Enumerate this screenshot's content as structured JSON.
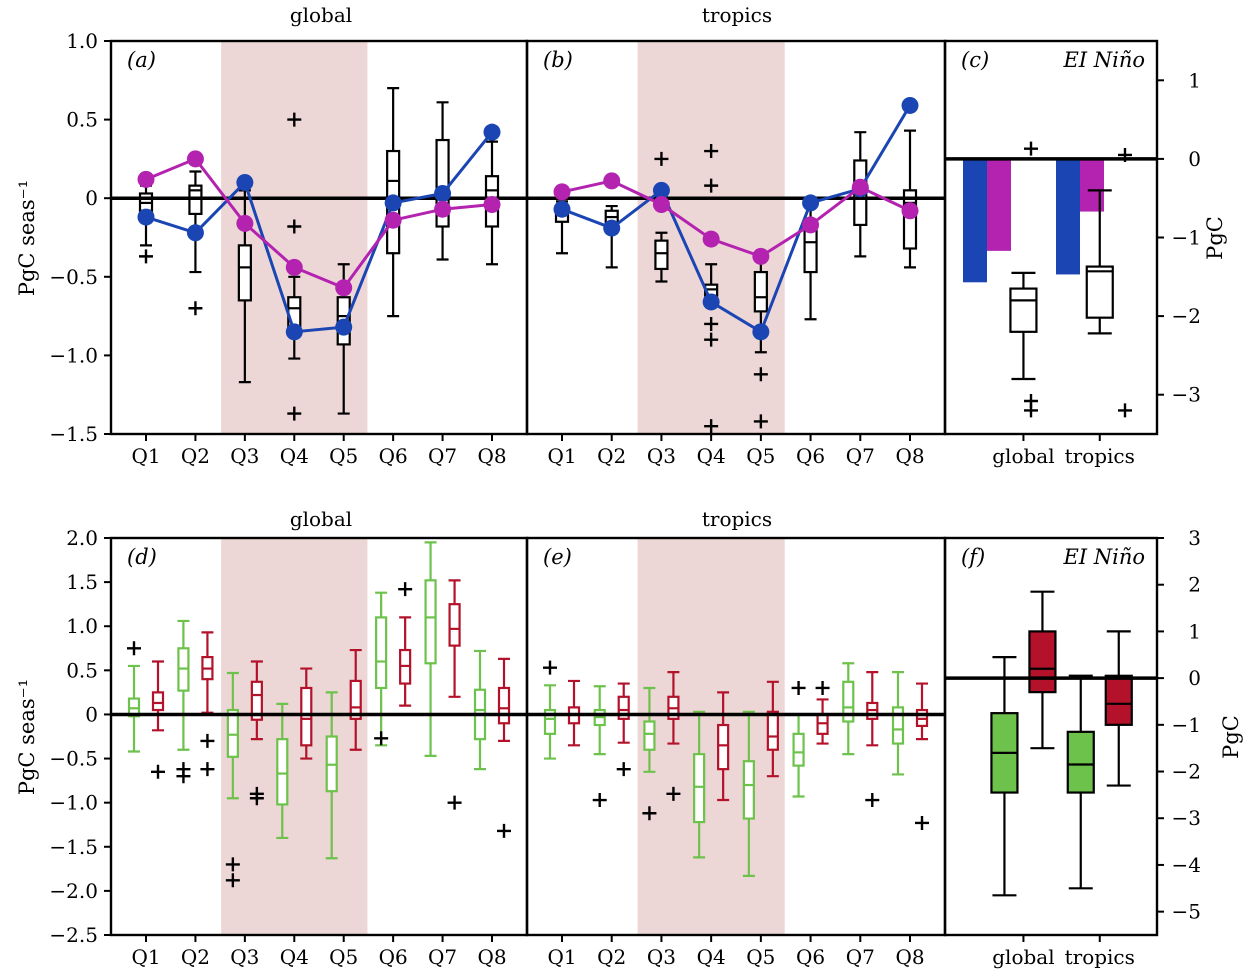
{
  "colors": {
    "blue": "#1a45b3",
    "magenta": "#b323b0",
    "green": "#6cc24a",
    "red": "#b3122a",
    "shade": "#edd7d6",
    "box": "#000000"
  },
  "chart_data": [
    {
      "id": "a",
      "type": "box",
      "panel_label": "(a)",
      "title": "global",
      "ylabel": "PgC seas⁻¹",
      "ylim": [
        -1.5,
        1.0
      ],
      "yticks": [
        1.0,
        0.5,
        0,
        -0.5,
        -1.0,
        -1.5
      ],
      "ytick_labels": [
        "1.0",
        "0.5",
        "0",
        "−0.5",
        "−1.0",
        "−1.5"
      ],
      "categories": [
        "Q1",
        "Q2",
        "Q3",
        "Q4",
        "Q5",
        "Q6",
        "Q7",
        "Q8"
      ],
      "shaded_categories": [
        "Q3",
        "Q5"
      ],
      "zero_line": true,
      "box_series": [
        {
          "boxes": [
            {
              "min": -0.3,
              "q1": -0.08,
              "median": -0.03,
              "q3": 0.03,
              "max": 0.08,
              "outliers": [
                -0.37
              ]
            },
            {
              "min": -0.47,
              "q1": -0.1,
              "median": 0.05,
              "q3": 0.08,
              "max": 0.17,
              "outliers": [
                -0.7
              ]
            },
            {
              "min": -1.17,
              "q1": -0.65,
              "median": -0.44,
              "q3": -0.3,
              "max": 0.05,
              "outliers": []
            },
            {
              "min": -1.02,
              "q1": -0.83,
              "median": -0.7,
              "q3": -0.63,
              "max": -0.5,
              "outliers": [
                0.5,
                -0.18,
                -1.37
              ]
            },
            {
              "min": -1.37,
              "q1": -0.93,
              "median": -0.75,
              "q3": -0.63,
              "max": -0.42,
              "outliers": []
            },
            {
              "min": -0.75,
              "q1": -0.35,
              "median": 0.11,
              "q3": 0.3,
              "max": 0.7,
              "outliers": []
            },
            {
              "min": -0.39,
              "q1": -0.18,
              "median": 0.03,
              "q3": 0.37,
              "max": 0.61,
              "outliers": []
            },
            {
              "min": -0.42,
              "q1": -0.18,
              "median": 0.05,
              "q3": 0.14,
              "max": 0.36,
              "outliers": []
            }
          ]
        }
      ],
      "line_series": [
        {
          "color": "blue",
          "values": [
            -0.12,
            -0.22,
            0.1,
            -0.85,
            -0.82,
            -0.03,
            0.03,
            0.42
          ]
        },
        {
          "color": "magenta",
          "values": [
            0.12,
            0.25,
            -0.16,
            -0.44,
            -0.57,
            -0.14,
            -0.07,
            -0.04
          ]
        }
      ]
    },
    {
      "id": "b",
      "type": "box",
      "panel_label": "(b)",
      "title": "tropics",
      "ylim": [
        -1.5,
        1.0
      ],
      "categories": [
        "Q1",
        "Q2",
        "Q3",
        "Q4",
        "Q5",
        "Q6",
        "Q7",
        "Q8"
      ],
      "shaded_categories": [
        "Q3",
        "Q5"
      ],
      "zero_line": true,
      "box_series": [
        {
          "boxes": [
            {
              "min": -0.35,
              "q1": -0.15,
              "median": -0.1,
              "q3": -0.05,
              "max": -0.02,
              "outliers": []
            },
            {
              "min": -0.44,
              "q1": -0.18,
              "median": -0.12,
              "q3": -0.08,
              "max": -0.05,
              "outliers": []
            },
            {
              "min": -0.53,
              "q1": -0.45,
              "median": -0.35,
              "q3": -0.27,
              "max": -0.22,
              "outliers": [
                0.25
              ]
            },
            {
              "min": -0.69,
              "q1": -0.62,
              "median": -0.58,
              "q3": -0.55,
              "max": -0.42,
              "outliers": [
                0.3,
                0.08,
                -0.8,
                -0.9,
                -1.45
              ]
            },
            {
              "min": -0.98,
              "q1": -0.72,
              "median": -0.63,
              "q3": -0.47,
              "max": -0.4,
              "outliers": [
                -1.12,
                -1.42
              ]
            },
            {
              "min": -0.77,
              "q1": -0.47,
              "median": -0.28,
              "q3": -0.17,
              "max": 0.0,
              "outliers": []
            },
            {
              "min": -0.37,
              "q1": -0.17,
              "median": 0.03,
              "q3": 0.24,
              "max": 0.42,
              "outliers": []
            },
            {
              "min": -0.44,
              "q1": -0.32,
              "median": -0.03,
              "q3": 0.05,
              "max": 0.43,
              "outliers": []
            }
          ]
        }
      ],
      "line_series": [
        {
          "color": "blue",
          "values": [
            -0.07,
            -0.19,
            0.05,
            -0.66,
            -0.85,
            -0.03,
            0.06,
            0.59
          ]
        },
        {
          "color": "magenta",
          "values": [
            0.04,
            0.11,
            -0.04,
            -0.26,
            -0.37,
            -0.17,
            0.07,
            -0.08
          ]
        }
      ]
    },
    {
      "id": "c",
      "type": "bar",
      "panel_label": "(c)",
      "annotation": "EI Niño",
      "ylabel": "PgC",
      "ylim": [
        -3.5,
        1.5
      ],
      "yticks": [
        1,
        0,
        -1,
        -2,
        -3
      ],
      "ytick_labels": [
        "1",
        "0",
        "−1",
        "−2",
        "−3"
      ],
      "categories": [
        "global",
        "tropics"
      ],
      "zero_line": true,
      "bar_series": [
        {
          "color": "blue",
          "values": [
            -1.57,
            -1.47
          ]
        },
        {
          "color": "magenta",
          "values": [
            -1.17,
            -0.67
          ]
        }
      ],
      "box_series": [
        {
          "boxes": [
            {
              "min": -2.8,
              "q1": -2.2,
              "median": -1.8,
              "q3": -1.65,
              "max": -1.45,
              "outliers": [
                0.13,
                -3.08,
                -3.2
              ]
            },
            {
              "min": -2.22,
              "q1": -2.02,
              "median": -1.43,
              "q3": -1.37,
              "max": -0.4,
              "outliers": [
                0.05,
                -3.2
              ]
            }
          ]
        }
      ]
    },
    {
      "id": "d",
      "type": "box",
      "panel_label": "(d)",
      "title": "global",
      "ylabel": "PgC seas⁻¹",
      "ylim": [
        -2.5,
        2.0
      ],
      "yticks": [
        2.0,
        1.5,
        1.0,
        0.5,
        0,
        -0.5,
        -1.0,
        -1.5,
        -2.0,
        -2.5
      ],
      "ytick_labels": [
        "2.0",
        "1.5",
        "1.0",
        "0.5",
        "0",
        "−0.5",
        "−1.0",
        "−1.5",
        "−2.0",
        "−2.5"
      ],
      "categories": [
        "Q1",
        "Q2",
        "Q3",
        "Q4",
        "Q5",
        "Q6",
        "Q7",
        "Q8"
      ],
      "shaded_categories": [
        "Q3",
        "Q5"
      ],
      "zero_line": true,
      "box_series": [
        {
          "color": "green",
          "boxes": [
            {
              "min": -0.42,
              "q1": -0.02,
              "median": 0.07,
              "q3": 0.18,
              "max": 0.55,
              "outliers": [
                0.75
              ]
            },
            {
              "min": -0.4,
              "q1": 0.27,
              "median": 0.52,
              "q3": 0.75,
              "max": 1.06,
              "outliers": [
                -0.62,
                -0.7
              ]
            },
            {
              "min": -0.95,
              "q1": -0.48,
              "median": -0.23,
              "q3": 0.05,
              "max": 0.47,
              "outliers": [
                -1.7,
                -1.88
              ]
            },
            {
              "min": -1.4,
              "q1": -1.02,
              "median": -0.67,
              "q3": -0.28,
              "max": 0.12,
              "outliers": []
            },
            {
              "min": -1.63,
              "q1": -0.87,
              "median": -0.57,
              "q3": -0.25,
              "max": 0.25,
              "outliers": []
            },
            {
              "min": -0.35,
              "q1": 0.3,
              "median": 0.6,
              "q3": 1.1,
              "max": 1.38,
              "outliers": [
                -0.27
              ]
            },
            {
              "min": -0.47,
              "q1": 0.58,
              "median": 1.1,
              "q3": 1.52,
              "max": 1.95,
              "outliers": []
            },
            {
              "min": -0.62,
              "q1": -0.28,
              "median": 0.05,
              "q3": 0.28,
              "max": 0.72,
              "outliers": []
            }
          ]
        },
        {
          "color": "red",
          "boxes": [
            {
              "min": -0.18,
              "q1": 0.05,
              "median": 0.13,
              "q3": 0.25,
              "max": 0.6,
              "outliers": [
                -0.65
              ]
            },
            {
              "min": 0.02,
              "q1": 0.4,
              "median": 0.52,
              "q3": 0.65,
              "max": 0.93,
              "outliers": [
                -0.3,
                -0.62
              ]
            },
            {
              "min": -0.28,
              "q1": -0.06,
              "median": 0.22,
              "q3": 0.37,
              "max": 0.6,
              "outliers": [
                -0.9,
                -0.95
              ]
            },
            {
              "min": -0.5,
              "q1": -0.35,
              "median": -0.05,
              "q3": 0.3,
              "max": 0.52,
              "outliers": []
            },
            {
              "min": -0.4,
              "q1": -0.05,
              "median": 0.08,
              "q3": 0.38,
              "max": 0.73,
              "outliers": []
            },
            {
              "min": 0.1,
              "q1": 0.35,
              "median": 0.55,
              "q3": 0.73,
              "max": 1.1,
              "outliers": [
                1.42
              ]
            },
            {
              "min": 0.2,
              "q1": 0.78,
              "median": 0.97,
              "q3": 1.25,
              "max": 1.52,
              "outliers": [
                -1.0
              ]
            },
            {
              "min": -0.3,
              "q1": -0.1,
              "median": 0.07,
              "q3": 0.3,
              "max": 0.63,
              "outliers": [
                -1.32
              ]
            }
          ]
        }
      ]
    },
    {
      "id": "e",
      "type": "box",
      "panel_label": "(e)",
      "title": "tropics",
      "ylim": [
        -2.5,
        2.0
      ],
      "categories": [
        "Q1",
        "Q2",
        "Q3",
        "Q4",
        "Q5",
        "Q6",
        "Q7",
        "Q8"
      ],
      "shaded_categories": [
        "Q3",
        "Q5"
      ],
      "zero_line": true,
      "box_series": [
        {
          "color": "green",
          "boxes": [
            {
              "min": -0.5,
              "q1": -0.22,
              "median": -0.05,
              "q3": 0.05,
              "max": 0.33,
              "outliers": [
                0.53
              ]
            },
            {
              "min": -0.45,
              "q1": -0.12,
              "median": -0.03,
              "q3": 0.05,
              "max": 0.32,
              "outliers": [
                -0.97
              ]
            },
            {
              "min": -0.65,
              "q1": -0.4,
              "median": -0.22,
              "q3": -0.08,
              "max": 0.3,
              "outliers": [
                -1.12
              ]
            },
            {
              "min": -1.62,
              "q1": -1.22,
              "median": -0.82,
              "q3": -0.45,
              "max": 0.03,
              "outliers": []
            },
            {
              "min": -1.83,
              "q1": -1.18,
              "median": -0.8,
              "q3": -0.53,
              "max": 0.03,
              "outliers": []
            },
            {
              "min": -0.93,
              "q1": -0.58,
              "median": -0.43,
              "q3": -0.22,
              "max": 0.0,
              "outliers": [
                0.3
              ]
            },
            {
              "min": -0.45,
              "q1": -0.08,
              "median": 0.08,
              "q3": 0.37,
              "max": 0.58,
              "outliers": []
            },
            {
              "min": -0.68,
              "q1": -0.33,
              "median": -0.17,
              "q3": 0.08,
              "max": 0.48,
              "outliers": []
            }
          ]
        },
        {
          "color": "red",
          "boxes": [
            {
              "min": -0.35,
              "q1": -0.1,
              "median": 0.0,
              "q3": 0.08,
              "max": 0.38,
              "outliers": []
            },
            {
              "min": -0.32,
              "q1": -0.05,
              "median": 0.05,
              "q3": 0.2,
              "max": 0.35,
              "outliers": [
                -0.62
              ]
            },
            {
              "min": -0.33,
              "q1": -0.05,
              "median": 0.07,
              "q3": 0.2,
              "max": 0.48,
              "outliers": [
                -0.9
              ]
            },
            {
              "min": -0.97,
              "q1": -0.62,
              "median": -0.35,
              "q3": -0.12,
              "max": 0.25,
              "outliers": []
            },
            {
              "min": -0.7,
              "q1": -0.4,
              "median": -0.25,
              "q3": 0.03,
              "max": 0.37,
              "outliers": []
            },
            {
              "min": -0.33,
              "q1": -0.22,
              "median": -0.1,
              "q3": 0.0,
              "max": 0.17,
              "outliers": [
                0.3
              ]
            },
            {
              "min": -0.35,
              "q1": -0.05,
              "median": 0.05,
              "q3": 0.13,
              "max": 0.48,
              "outliers": [
                -0.97
              ]
            },
            {
              "min": -0.28,
              "q1": -0.13,
              "median": -0.05,
              "q3": 0.05,
              "max": 0.35,
              "outliers": [
                -1.23
              ]
            }
          ]
        }
      ]
    },
    {
      "id": "f",
      "type": "box",
      "panel_label": "(f)",
      "annotation": "EI Niño",
      "ylabel": "PgC",
      "ylim": [
        -5.5,
        3.0
      ],
      "yticks": [
        3,
        2,
        1,
        0,
        -1,
        -2,
        -3,
        -4,
        -5
      ],
      "ytick_labels": [
        "3",
        "2",
        "1",
        "0",
        "−1",
        "−2",
        "−3",
        "−4",
        "−5"
      ],
      "categories": [
        "global",
        "tropics"
      ],
      "zero_line": true,
      "box_series": [
        {
          "color": "green",
          "filled": true,
          "boxes": [
            {
              "min": -4.65,
              "q1": -2.45,
              "median": -1.6,
              "q3": -0.75,
              "max": 0.45,
              "outliers": []
            },
            {
              "min": -4.5,
              "q1": -2.45,
              "median": -1.85,
              "q3": -1.15,
              "max": 0.05,
              "outliers": []
            }
          ]
        },
        {
          "color": "red",
          "filled": true,
          "boxes": [
            {
              "min": -1.5,
              "q1": -0.3,
              "median": 0.2,
              "q3": 1.0,
              "max": 1.85,
              "outliers": []
            },
            {
              "min": -2.3,
              "q1": -1.0,
              "median": -0.55,
              "q3": 0.05,
              "max": 1.0,
              "outliers": []
            }
          ]
        }
      ]
    }
  ]
}
